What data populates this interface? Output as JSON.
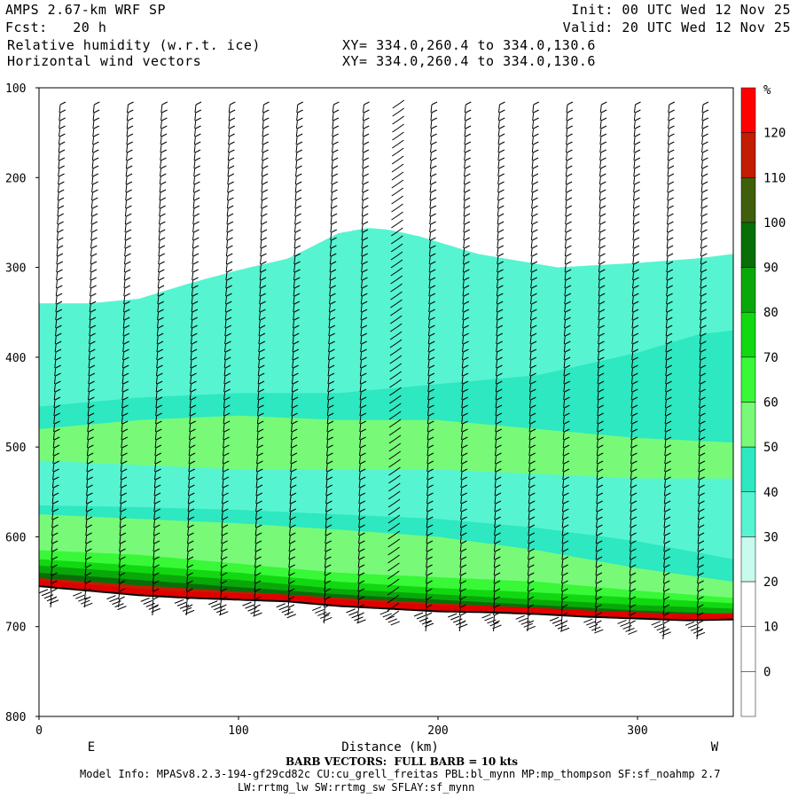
{
  "header": {
    "model": "AMPS 2.67-km WRF SP",
    "forecast": "Fcst:   20 h",
    "init": "Init: 00 UTC Wed 12 Nov 25",
    "valid": "Valid: 20 UTC Wed 12 Nov 25",
    "field1": "Relative humidity (w.r.t. ice)",
    "field2": "Horizontal wind vectors",
    "xy1": "XY= 334.0,260.4 to 334.0,130.6",
    "xy2": "XY= 334.0,260.4 to 334.0,130.6"
  },
  "footer": {
    "barb_note": "BARB VECTORS:  FULL BARB = 10 kts",
    "model_info": "Model Info: MPASv8.2.3-194-gf29cd82c CU:cu_grell_freitas PBL:bl_mynn MP:mp_thompson SF:sf_noahmp 2.7",
    "model_info2": "LW:rrtmg_lw SW:rrtmg_sw SFLAY:sf_mynn"
  },
  "chart_data": {
    "type": "heatmap",
    "title": "Relative humidity (w.r.t. ice)",
    "xlabel": "Distance (km)",
    "ylabel": "",
    "xlim": [
      0,
      348
    ],
    "ylim": [
      800,
      100
    ],
    "x_ticks": [
      0,
      100,
      200,
      300
    ],
    "y_ticks": [
      100,
      200,
      300,
      400,
      500,
      600,
      700,
      800
    ],
    "x_end_labels": {
      "left": "E",
      "right": "W"
    },
    "colorbar": {
      "unit": "%",
      "levels": [
        0,
        10,
        20,
        30,
        40,
        50,
        60,
        70,
        80,
        90,
        100,
        110,
        120
      ],
      "colors": [
        "#ffffff",
        "#ffffff",
        "#ffffff",
        "#c8fbee",
        "#57f4d2",
        "#2de8c0",
        "#78fa78",
        "#38f838",
        "#11d811",
        "#09a809",
        "#086f08",
        "#3f5f0c",
        "#c21d00",
        "#ff0000"
      ]
    },
    "terrain_surface": {
      "x": [
        0,
        25,
        50,
        75,
        100,
        125,
        150,
        175,
        200,
        225,
        250,
        275,
        300,
        325,
        348
      ],
      "pressure": [
        655,
        660,
        665,
        668,
        670,
        672,
        677,
        680,
        683,
        684,
        686,
        689,
        691,
        693,
        692
      ]
    },
    "rh_bands": [
      {
        "level": 30,
        "top_x": [
          0,
          25,
          50,
          75,
          100,
          125,
          150,
          165,
          175,
          190,
          220,
          260,
          300,
          330,
          348
        ],
        "top_p": [
          340,
          340,
          335,
          318,
          303,
          290,
          262,
          256,
          258,
          265,
          285,
          300,
          295,
          290,
          285
        ]
      },
      {
        "level": 40,
        "top_x": [
          0,
          50,
          100,
          150,
          200,
          250,
          300,
          330,
          348
        ],
        "top_p": [
          455,
          445,
          440,
          440,
          430,
          420,
          395,
          375,
          370
        ]
      },
      {
        "level": 50,
        "top_x": [
          0,
          50,
          100,
          150,
          200,
          250,
          300,
          348
        ],
        "top_p": [
          480,
          470,
          465,
          470,
          470,
          480,
          490,
          495
        ]
      },
      {
        "level": 30,
        "top_x": [
          0,
          50,
          100,
          150,
          200,
          250,
          300,
          348
        ],
        "top_p": [
          515,
          520,
          525,
          525,
          525,
          530,
          535,
          535
        ]
      },
      {
        "level": 40,
        "top_x": [
          0,
          50,
          100,
          150,
          200,
          250,
          300,
          348
        ],
        "top_p": [
          565,
          567,
          570,
          575,
          580,
          590,
          605,
          625
        ]
      },
      {
        "level": 50,
        "top_x": [
          0,
          50,
          100,
          150,
          200,
          250,
          300,
          348
        ],
        "top_p": [
          575,
          580,
          585,
          592,
          600,
          615,
          635,
          650
        ]
      },
      {
        "level": 60,
        "top_x": [
          0,
          50,
          100,
          150,
          200,
          250,
          300,
          348
        ],
        "top_p": [
          615,
          620,
          630,
          640,
          645,
          650,
          660,
          668
        ]
      },
      {
        "level": 70,
        "top_x": [
          0,
          50,
          100,
          150,
          200,
          250,
          300,
          348
        ],
        "top_p": [
          625,
          632,
          640,
          650,
          657,
          662,
          668,
          674
        ]
      },
      {
        "level": 80,
        "top_x": [
          0,
          50,
          100,
          150,
          200,
          250,
          300,
          348
        ],
        "top_p": [
          632,
          640,
          648,
          658,
          664,
          670,
          676,
          680
        ]
      },
      {
        "level": 90,
        "top_x": [
          0,
          50,
          100,
          150,
          200,
          250,
          300,
          348
        ],
        "top_p": [
          640,
          648,
          656,
          664,
          670,
          676,
          682,
          686
        ]
      },
      {
        "level": 110,
        "top_x": [
          0,
          50,
          100,
          150,
          200,
          250,
          300,
          348
        ],
        "top_p": [
          646,
          654,
          661,
          668,
          674,
          680,
          686,
          690
        ]
      }
    ],
    "barb_columns_x": [
      8,
      25,
      42,
      59,
      76,
      93,
      110,
      127,
      145,
      162,
      179,
      196,
      213,
      230,
      247,
      264,
      281,
      298,
      315,
      332
    ]
  }
}
